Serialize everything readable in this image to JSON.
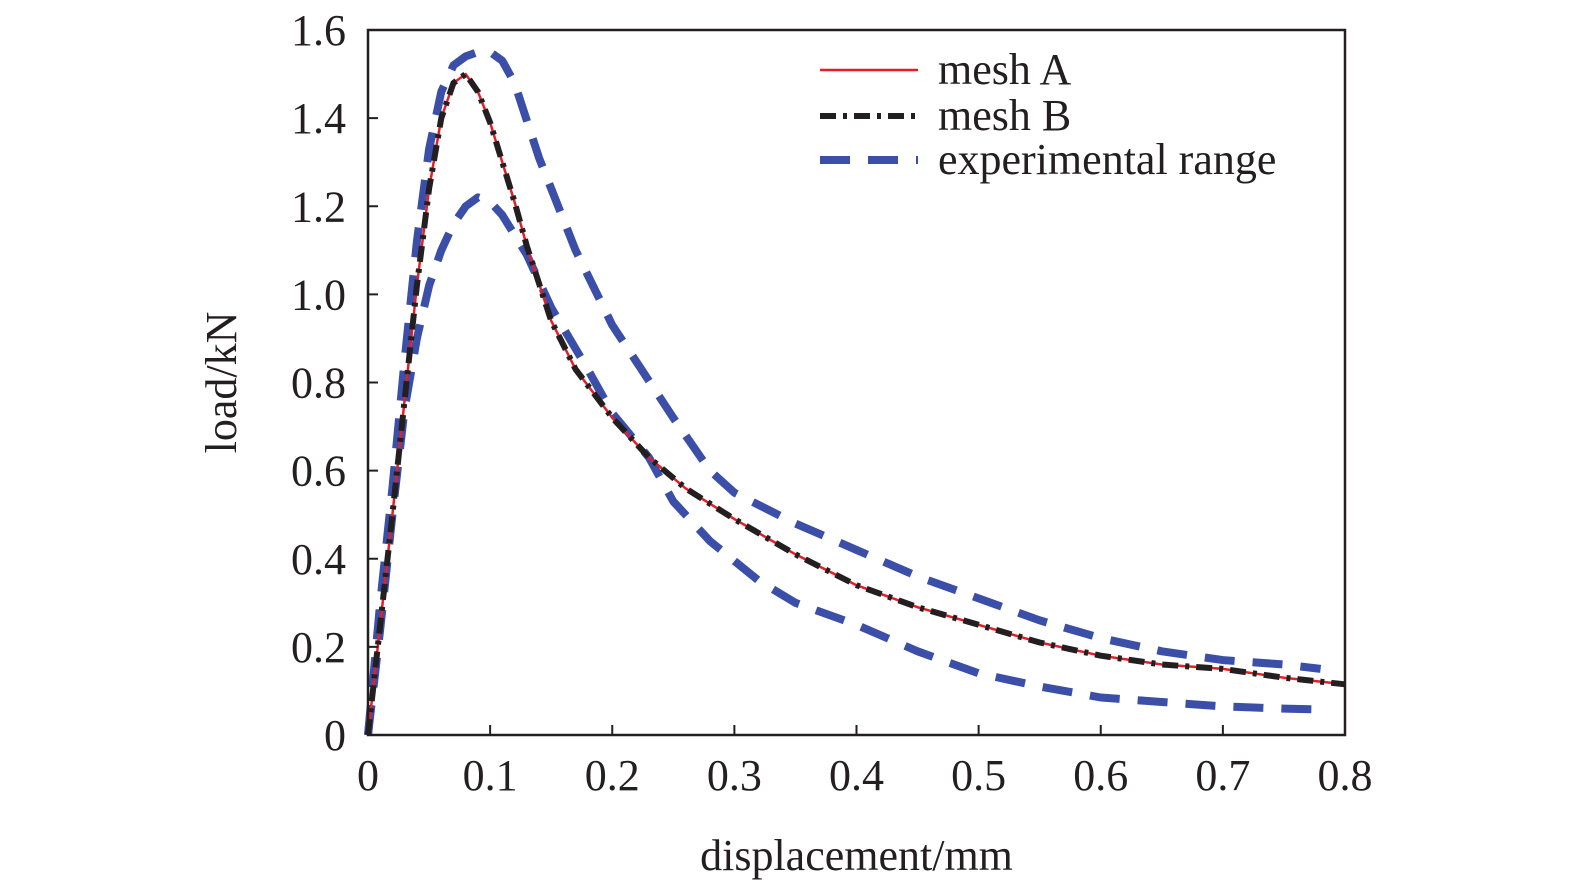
{
  "chart_data": {
    "type": "line",
    "title": "",
    "xlabel": "displacement/mm",
    "ylabel": "load/kN",
    "xlim": [
      0,
      0.8
    ],
    "ylim": [
      0,
      1.6
    ],
    "x_ticks": [
      0,
      0.1,
      0.2,
      0.3,
      0.4,
      0.5,
      0.6,
      0.7,
      0.8
    ],
    "x_tick_labels": [
      "0",
      "0.1",
      "0.2",
      "0.3",
      "0.4",
      "0.5",
      "0.6",
      "0.7",
      "0.8"
    ],
    "y_ticks": [
      0,
      0.2,
      0.4,
      0.6,
      0.8,
      1.0,
      1.2,
      1.4,
      1.6
    ],
    "y_tick_labels": [
      "0",
      "0.2",
      "0.4",
      "0.6",
      "0.8",
      "1.0",
      "1.2",
      "1.4",
      "1.6"
    ],
    "grid": false,
    "legend_position": "top-right",
    "legend": [
      "mesh A",
      "mesh B",
      "experimental range"
    ],
    "series": [
      {
        "name": "mesh A",
        "color": "#e41e26",
        "style": "solid",
        "x": [
          0,
          0.01,
          0.02,
          0.03,
          0.04,
          0.05,
          0.06,
          0.07,
          0.08,
          0.09,
          0.1,
          0.11,
          0.12,
          0.13,
          0.15,
          0.17,
          0.2,
          0.23,
          0.26,
          0.3,
          0.35,
          0.4,
          0.45,
          0.5,
          0.55,
          0.6,
          0.65,
          0.7,
          0.75,
          0.8
        ],
        "values": [
          0,
          0.25,
          0.5,
          0.76,
          1.02,
          1.24,
          1.4,
          1.48,
          1.5,
          1.46,
          1.39,
          1.3,
          1.21,
          1.11,
          0.94,
          0.83,
          0.72,
          0.63,
          0.56,
          0.49,
          0.41,
          0.34,
          0.29,
          0.25,
          0.21,
          0.18,
          0.16,
          0.15,
          0.13,
          0.115
        ]
      },
      {
        "name": "mesh B",
        "color": "#231f20",
        "style": "dash-dot",
        "x": [
          0,
          0.01,
          0.02,
          0.03,
          0.04,
          0.05,
          0.06,
          0.07,
          0.08,
          0.09,
          0.1,
          0.11,
          0.12,
          0.13,
          0.15,
          0.17,
          0.2,
          0.23,
          0.26,
          0.3,
          0.35,
          0.4,
          0.45,
          0.5,
          0.55,
          0.6,
          0.65,
          0.7,
          0.75,
          0.8
        ],
        "values": [
          0,
          0.25,
          0.5,
          0.76,
          1.02,
          1.24,
          1.4,
          1.48,
          1.5,
          1.46,
          1.39,
          1.3,
          1.21,
          1.11,
          0.94,
          0.83,
          0.72,
          0.63,
          0.56,
          0.49,
          0.41,
          0.34,
          0.29,
          0.25,
          0.21,
          0.18,
          0.16,
          0.15,
          0.13,
          0.115
        ]
      },
      {
        "name": "experimental range",
        "color": "#3b4fa8",
        "style": "dashed",
        "x": [
          0,
          0.01,
          0.02,
          0.03,
          0.04,
          0.05,
          0.06,
          0.07,
          0.08,
          0.09,
          0.1,
          0.11,
          0.12,
          0.14,
          0.17,
          0.2,
          0.25,
          0.28,
          0.3,
          0.35,
          0.4,
          0.45,
          0.5,
          0.55,
          0.6,
          0.65,
          0.7,
          0.75,
          0.78
        ],
        "values": [
          0,
          0.3,
          0.56,
          0.85,
          1.12,
          1.33,
          1.46,
          1.52,
          1.54,
          1.55,
          1.55,
          1.53,
          1.48,
          1.31,
          1.1,
          0.93,
          0.72,
          0.6,
          0.55,
          0.48,
          0.42,
          0.36,
          0.31,
          0.26,
          0.22,
          0.19,
          0.17,
          0.16,
          0.15
        ]
      },
      {
        "name": "experimental range",
        "color": "#3b4fa8",
        "style": "dashed",
        "x": [
          0,
          0.01,
          0.02,
          0.03,
          0.04,
          0.05,
          0.06,
          0.07,
          0.08,
          0.09,
          0.1,
          0.11,
          0.13,
          0.15,
          0.18,
          0.2,
          0.23,
          0.25,
          0.28,
          0.32,
          0.35,
          0.4,
          0.45,
          0.5,
          0.55,
          0.6,
          0.65,
          0.7,
          0.75,
          0.78
        ],
        "values": [
          0,
          0.24,
          0.5,
          0.74,
          0.9,
          1.02,
          1.1,
          1.16,
          1.2,
          1.22,
          1.21,
          1.18,
          1.09,
          0.97,
          0.83,
          0.73,
          0.63,
          0.53,
          0.44,
          0.35,
          0.3,
          0.25,
          0.19,
          0.14,
          0.11,
          0.085,
          0.075,
          0.065,
          0.06,
          0.058
        ]
      }
    ]
  }
}
